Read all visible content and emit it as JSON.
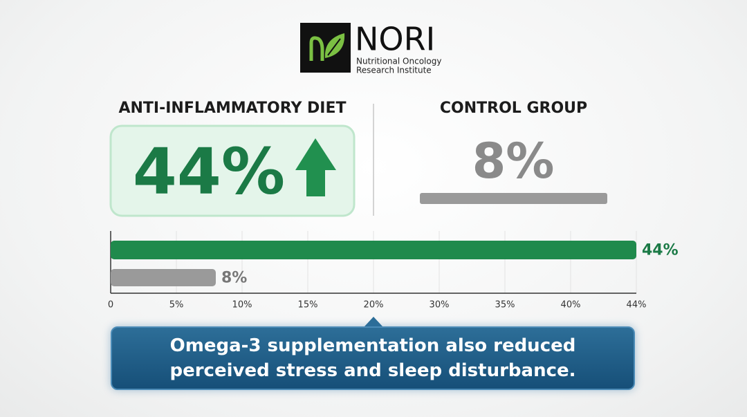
{
  "header": {
    "logo_text": "NORI",
    "logo_subtitle_1": "Nutritional Oncology",
    "logo_subtitle_2": "Research Institute"
  },
  "chart_data": {
    "type": "bar",
    "orientation": "horizontal",
    "categories": [
      "ANTI-INFLAMMATORY DIET",
      "CONTROL GROUP"
    ],
    "values": [
      44,
      8
    ],
    "value_labels": [
      "44%",
      "8%"
    ],
    "colors": [
      "#1f8a4c",
      "#9a9a9a"
    ],
    "xlim": [
      0,
      44
    ],
    "xticks": [
      0,
      {
        "value": 5,
        "label": "5%"
      },
      {
        "value": 10,
        "label": "10%"
      },
      {
        "value": 15,
        "label": "15%"
      },
      {
        "value": 20,
        "label": "20%"
      },
      {
        "value": 30,
        "label": "30%"
      },
      {
        "value": 35,
        "label": "35%"
      },
      {
        "value": 40,
        "label": "40%"
      },
      {
        "value": 44,
        "label": "44%"
      }
    ],
    "grid": true
  },
  "callout": {
    "text": "Omega-3 supplementation also reduced perceived stress and sleep disturbance."
  }
}
